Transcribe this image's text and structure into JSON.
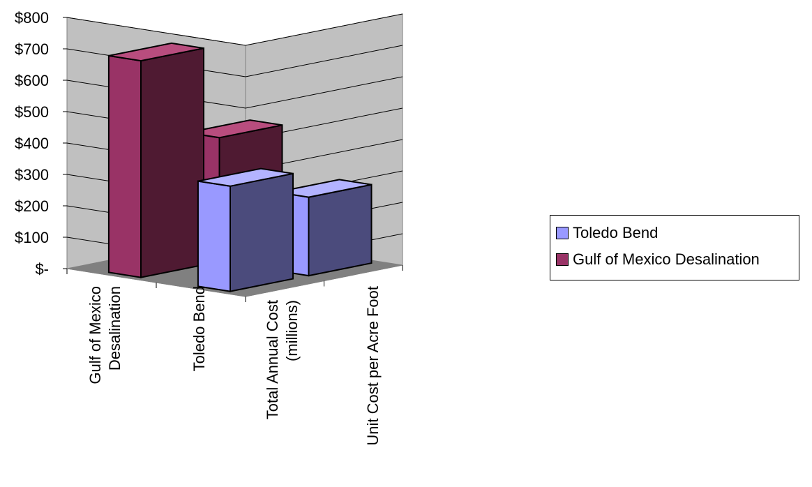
{
  "chart_data": {
    "type": "bar",
    "categories_front": [
      "Total Annual Cost (millions)",
      "Unit Cost per Acre Foot"
    ],
    "categories_depth": [
      "Gulf of Mexico Desalination",
      "Toledo Bend"
    ],
    "x_tick_labels": [
      [
        "Gulf of Mexico",
        "Desalination"
      ],
      [
        "Toledo Bend"
      ],
      [
        "Total Annual Cost",
        "(millions)"
      ],
      [
        "Unit Cost per Acre Foot"
      ]
    ],
    "series": [
      {
        "name": "Gulf of Mexico Desalination",
        "values": [
          690,
          395
        ],
        "color": "#993366",
        "side_color": "#4f1a32",
        "top_color": "#b84d7e"
      },
      {
        "name": "Toledo Bend",
        "values": [
          335,
          250
        ],
        "color": "#9999ff",
        "side_color": "#4b4b7c",
        "top_color": "#b3b3ff"
      }
    ],
    "ylim": [
      0,
      800
    ],
    "y_ticks": [
      "$-",
      "$100",
      "$200",
      "$300",
      "$400",
      "$500",
      "$600",
      "$700",
      "$800"
    ],
    "grid": true,
    "legend_placement": "right",
    "legend": [
      "Toledo Bend",
      "Gulf of Mexico Desalination"
    ]
  }
}
